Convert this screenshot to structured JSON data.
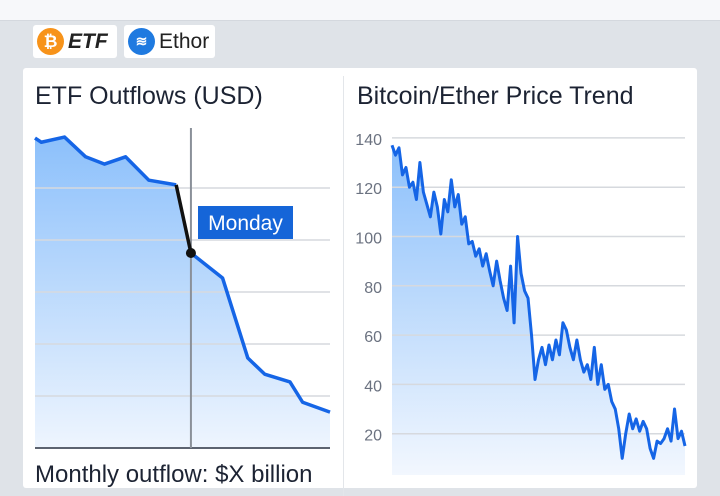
{
  "badges": [
    {
      "label": "ETF",
      "icon": "bitcoin-icon",
      "color": "#f7931a"
    },
    {
      "label": "Ethor",
      "icon": "ethor-layers-icon",
      "color": "#1f7ae0"
    }
  ],
  "left_panel": {
    "title": "ETF Outflows (USD)",
    "caption": "Monthly outflow: $X billion"
  },
  "right_panel": {
    "title": "Bitcoin/Ether Price Trend"
  },
  "accent": "#1565e6",
  "chart_data": [
    {
      "type": "area",
      "title": "ETF Outflows (USD)",
      "ylim": [
        0,
        6
      ],
      "grid": true,
      "x": [
        0,
        0.3,
        1.4,
        2.4,
        3.3,
        4.3,
        5.4,
        6.7,
        7.4,
        8.9,
        10.1,
        10.9,
        12.1,
        12.7,
        14
      ],
      "y": [
        5.96,
        5.88,
        5.98,
        5.6,
        5.46,
        5.6,
        5.15,
        5.06,
        3.75,
        3.27,
        1.73,
        1.42,
        1.27,
        0.88,
        0.69
      ],
      "annotation": {
        "label": "Monday",
        "x": 7.4
      }
    },
    {
      "type": "area",
      "title": "Bitcoin/Ether Price Trend",
      "ylim": [
        0,
        140
      ],
      "yticks": [
        20,
        40,
        60,
        80,
        100,
        120,
        140
      ],
      "grid": true,
      "y": [
        137,
        133,
        136,
        125,
        128,
        120,
        122,
        115,
        130,
        118,
        113,
        108,
        118,
        112,
        101,
        115,
        110,
        123,
        112,
        117,
        105,
        108,
        97,
        98,
        92,
        95,
        88,
        93,
        86,
        80,
        90,
        82,
        75,
        70,
        88,
        65,
        100,
        85,
        78,
        75,
        60,
        42,
        50,
        55,
        48,
        56,
        50,
        58,
        52,
        65,
        62,
        55,
        50,
        58,
        50,
        45,
        48,
        42,
        55,
        40,
        48,
        38,
        40,
        33,
        30,
        22,
        10,
        20,
        28,
        22,
        26,
        21,
        25,
        22,
        14,
        10,
        17,
        16,
        18,
        22,
        17,
        30,
        18,
        21,
        15
      ]
    }
  ]
}
